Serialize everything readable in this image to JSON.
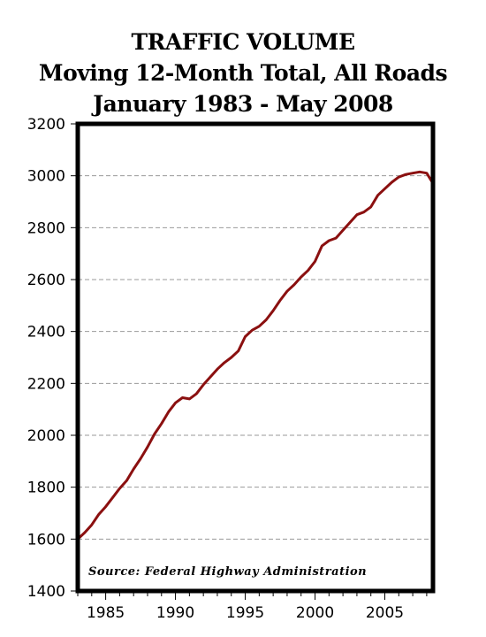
{
  "chart_data": {
    "type": "line",
    "title": "TRAFFIC VOLUME",
    "subtitle_lines": [
      "Moving 12-Month Total, All Roads",
      "January 1983 - May 2008"
    ],
    "xlabel": "",
    "ylabel": "",
    "xlim": [
      1983.0,
      2008.45
    ],
    "ylim": [
      1400,
      3200
    ],
    "y_ticks": [
      1400,
      1600,
      1800,
      2000,
      2200,
      2400,
      2600,
      2800,
      3000,
      3200
    ],
    "x_ticks": [
      1985,
      1990,
      1995,
      2000,
      2005
    ],
    "grid": "horizontal dashed",
    "line_color": "#8b1010",
    "annotation": "Source: Federal Highway Administration",
    "series": [
      {
        "x": [
          1983.0,
          1983.5,
          1984.0,
          1984.5,
          1985.0,
          1985.5,
          1986.0,
          1986.5,
          1987.0,
          1987.5,
          1988.0,
          1988.5,
          1989.0,
          1989.5,
          1990.0,
          1990.5,
          1991.0,
          1991.5,
          1992.0,
          1992.5,
          1993.0,
          1993.5,
          1994.0,
          1994.5,
          1995.0,
          1995.5,
          1996.0,
          1996.5,
          1997.0,
          1997.5,
          1998.0,
          1998.5,
          1999.0,
          1999.5,
          2000.0,
          2000.5,
          2001.0,
          2001.5,
          2002.0,
          2002.5,
          2003.0,
          2003.5,
          2004.0,
          2004.5,
          2005.0,
          2005.5,
          2006.0,
          2006.5,
          2007.0,
          2007.5,
          2008.0,
          2008.4
        ],
        "values": [
          1600,
          1625,
          1655,
          1695,
          1725,
          1760,
          1795,
          1825,
          1870,
          1910,
          1955,
          2005,
          2045,
          2090,
          2125,
          2145,
          2140,
          2160,
          2195,
          2225,
          2255,
          2280,
          2300,
          2325,
          2380,
          2405,
          2420,
          2445,
          2480,
          2520,
          2555,
          2580,
          2610,
          2635,
          2670,
          2730,
          2750,
          2760,
          2790,
          2820,
          2850,
          2860,
          2880,
          2925,
          2950,
          2975,
          2995,
          3005,
          3010,
          3015,
          3010,
          2975
        ]
      }
    ]
  }
}
